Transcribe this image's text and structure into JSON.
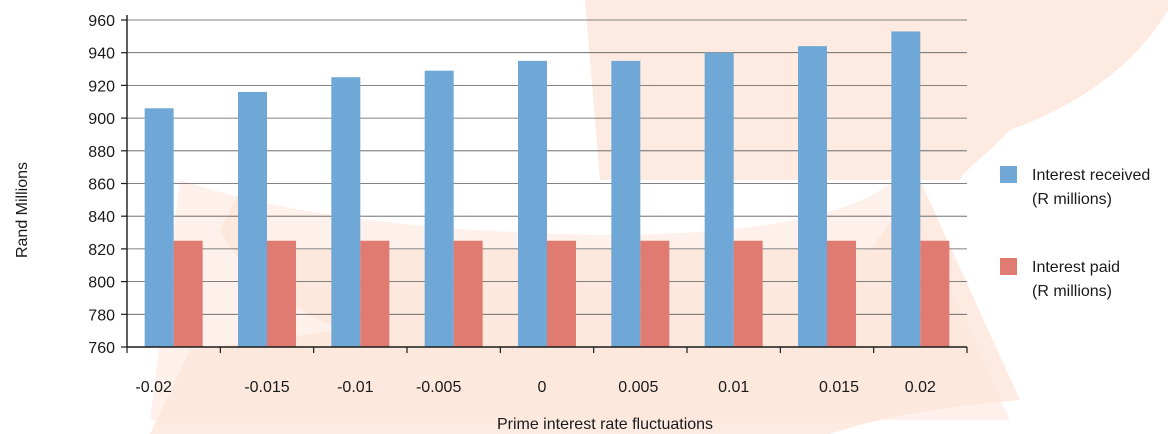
{
  "chart_data": {
    "type": "bar",
    "categories": [
      "-0.02",
      "-0.015",
      "-0.01",
      "-0.005",
      "0",
      "0.005",
      "0.01",
      "0.015",
      "0.02"
    ],
    "series": [
      {
        "name_lines": [
          "Interest received",
          "(R millions)"
        ],
        "color": "#6fa8d6",
        "values": [
          906,
          916,
          925,
          929,
          935,
          935,
          940,
          944,
          953
        ]
      },
      {
        "name_lines": [
          "Interest paid",
          "(R millions)"
        ],
        "color": "#e07b72",
        "values": [
          825,
          825,
          825,
          825,
          825,
          825,
          825,
          825,
          825
        ]
      }
    ],
    "xlabel": "Prime interest rate fluctuations",
    "ylabel": "Rand Millions",
    "ylim": [
      760,
      960
    ],
    "yticks": [
      760,
      780,
      800,
      820,
      840,
      860,
      880,
      900,
      920,
      940,
      960
    ],
    "grid": true,
    "legend_position": "right",
    "background_watermark_color": "#fde6da"
  }
}
